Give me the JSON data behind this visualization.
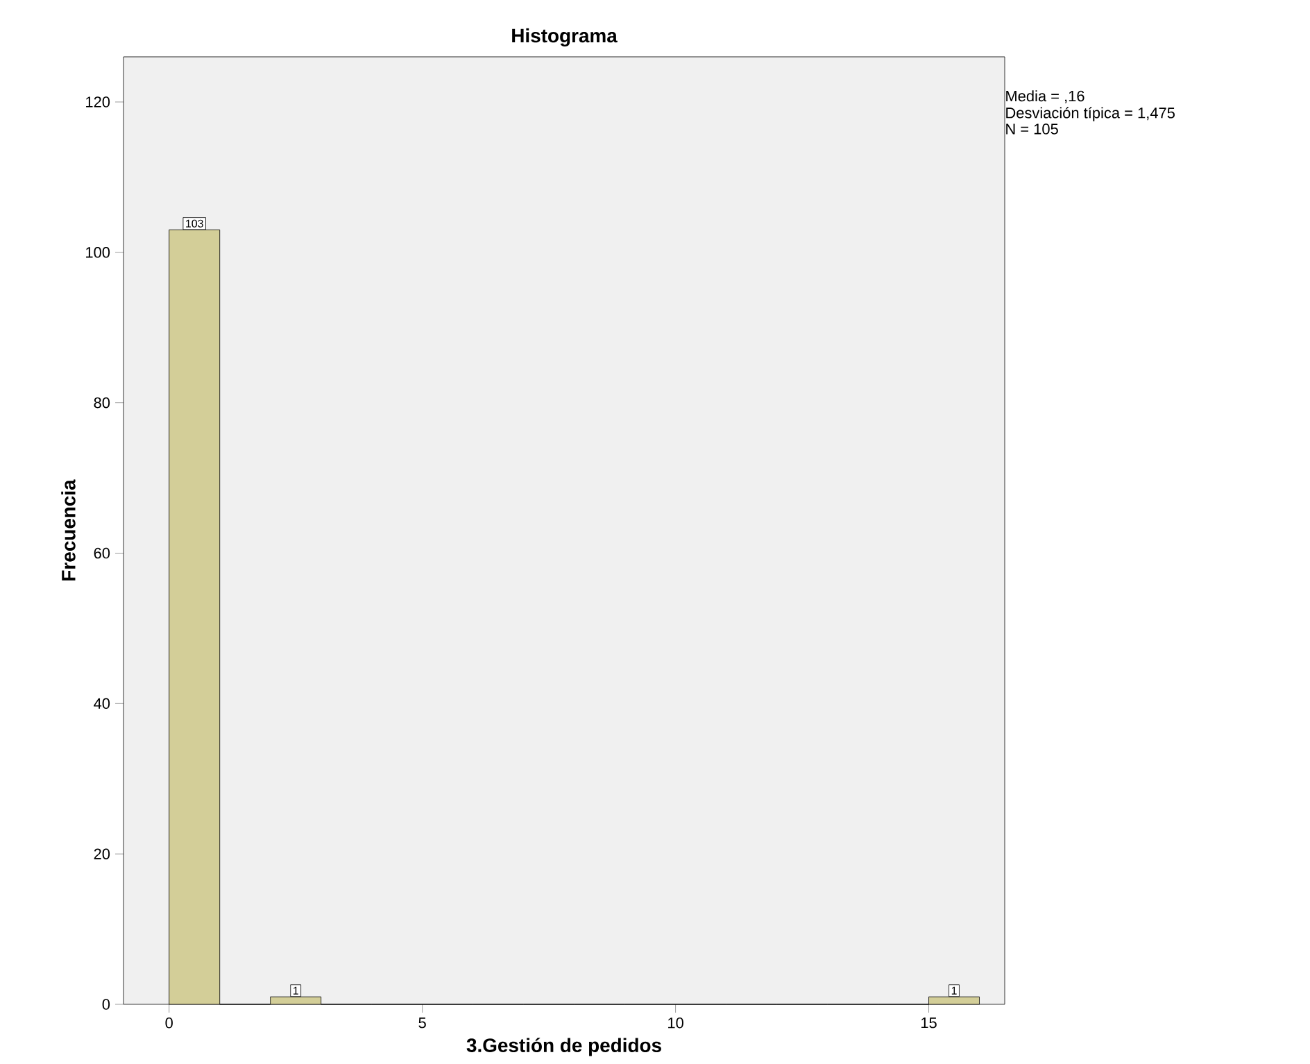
{
  "chart_data": {
    "type": "histogram",
    "title": "Histograma",
    "xlabel": "3.Gestión de pedidos",
    "ylabel": "Frecuencia",
    "bins": [
      0,
      1,
      2,
      3,
      4,
      5,
      6,
      7,
      8,
      9,
      10,
      11,
      12,
      13,
      14,
      15,
      16
    ],
    "values": [
      103,
      0,
      1,
      0,
      0,
      0,
      0,
      0,
      0,
      0,
      0,
      0,
      0,
      0,
      0,
      1
    ],
    "value_labels": [
      "103",
      null,
      "1",
      null,
      null,
      null,
      null,
      null,
      null,
      null,
      null,
      null,
      null,
      null,
      null,
      "1"
    ],
    "color": "#d3ce98",
    "xlim": [
      -0.9,
      16.5
    ],
    "ylim": [
      0,
      126
    ],
    "xticks": [
      0,
      5,
      10,
      15
    ],
    "yticks": [
      0,
      20,
      40,
      60,
      80,
      100,
      120
    ],
    "grid": false,
    "annotations": [
      "Media = ,16",
      "Desviación típica = 1,475",
      "N = 105"
    ]
  }
}
